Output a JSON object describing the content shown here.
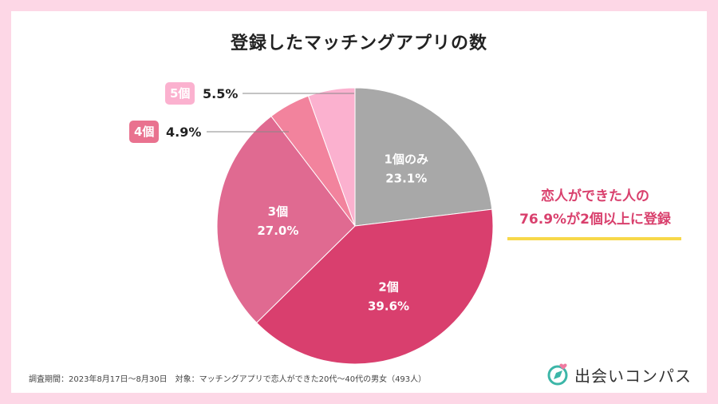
{
  "chart_data": {
    "type": "pie",
    "title": "登録したマッチングアプリの数",
    "slices": [
      {
        "label": "1個のみ",
        "value": 23.1,
        "value_text": "23.1%",
        "color": "#a8a8a8"
      },
      {
        "label": "2個",
        "value": 39.6,
        "value_text": "39.6%",
        "color": "#d93f6e"
      },
      {
        "label": "3個",
        "value": 27.0,
        "value_text": "27.0%",
        "color": "#e06a91"
      },
      {
        "label": "4個",
        "value": 4.9,
        "value_text": "4.9%",
        "color": "#f2839d"
      },
      {
        "label": "5個",
        "value": 5.5,
        "value_text": "5.5%",
        "color": "#fbb1cf"
      }
    ]
  },
  "outside_labels": {
    "five": {
      "badge": "5個",
      "value": "5.5%",
      "badge_color": "#fbb1cf"
    },
    "four": {
      "badge": "4個",
      "value": "4.9%",
      "badge_color": "#e9728f"
    }
  },
  "callout": {
    "line1": "恋人ができた人の",
    "line2": "76.9%が2個以上に登録",
    "underline_color": "#f7d84a"
  },
  "footnote": "調査期間：2023年8月17日～8月30日　対象：マッチングアプリで恋人ができた20代～40代の男女（493人）",
  "logo": {
    "text": "出会いコンパス",
    "icon": "compass-heart-icon"
  }
}
